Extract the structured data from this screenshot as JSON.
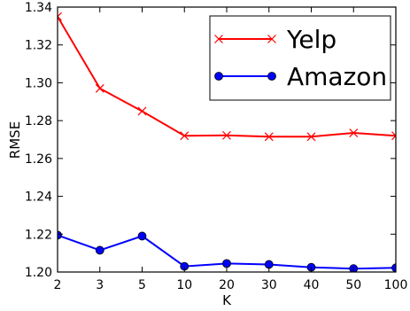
{
  "chart_data": {
    "type": "line",
    "x": [
      "2",
      "3",
      "5",
      "10",
      "20",
      "30",
      "40",
      "50",
      "100"
    ],
    "xlabel": "K",
    "ylabel": "RMSE",
    "ylim": [
      1.2,
      1.34
    ],
    "yticks": [
      "1.20",
      "1.22",
      "1.24",
      "1.26",
      "1.28",
      "1.30",
      "1.32",
      "1.34"
    ],
    "grid": false,
    "legend_position": "top-right",
    "series": [
      {
        "name": "Yelp",
        "color": "#ff0000",
        "marker": "x",
        "values": [
          1.335,
          1.297,
          1.285,
          1.272,
          1.2722,
          1.2715,
          1.2715,
          1.2735,
          1.272
        ]
      },
      {
        "name": "Amazon",
        "color": "#0000ff",
        "marker": "circle",
        "values": [
          1.2195,
          1.2115,
          1.219,
          1.203,
          1.2045,
          1.204,
          1.2025,
          1.2018,
          1.2022
        ]
      }
    ]
  }
}
